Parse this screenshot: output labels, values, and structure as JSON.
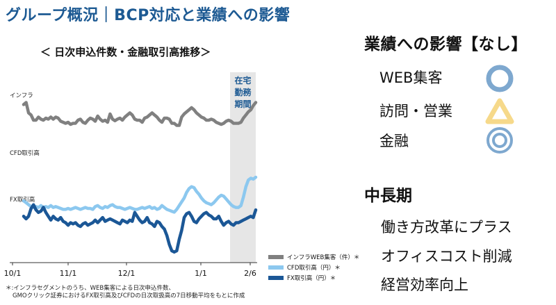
{
  "header": {
    "title": "グループ概況｜BCP対応と業績への影響",
    "chart_heading": "＜ 日次申込件数・金融取引高推移＞"
  },
  "chart_data": {
    "type": "line",
    "x_labels": [
      "10/1",
      "11/1",
      "12/1",
      "1/1",
      "2/6"
    ],
    "shaded_period_label": [
      "在宅",
      "勤務",
      "期間"
    ],
    "series": [
      {
        "name": "インフラWEB集客（件）＊",
        "axis_label": "インフラ",
        "color": "#808080",
        "values": [
          0.86,
          0.9,
          0.7,
          0.66,
          0.56,
          0.56,
          0.62,
          0.58,
          0.56,
          0.6,
          0.58,
          0.62,
          0.58,
          0.62,
          0.6,
          0.54,
          0.52,
          0.5,
          0.52,
          0.48,
          0.5,
          0.5,
          0.56,
          0.58,
          0.52,
          0.5,
          0.56,
          0.6,
          0.58,
          0.54,
          0.64,
          0.58,
          0.54,
          0.56,
          0.52,
          0.68,
          0.58,
          0.55,
          0.58,
          0.6,
          0.56,
          0.62,
          0.66,
          0.7,
          0.66,
          0.58,
          0.56,
          0.56,
          0.52,
          0.6,
          0.62,
          0.66,
          0.7,
          0.66,
          0.62,
          0.56,
          0.52,
          0.6,
          0.6,
          0.58,
          0.5,
          0.5,
          0.46,
          0.46,
          0.62,
          0.68,
          0.72,
          0.76,
          0.8,
          0.76,
          0.7,
          0.66,
          0.62,
          0.6,
          0.56,
          0.56,
          0.58,
          0.56,
          0.52,
          0.5,
          0.48,
          0.5,
          0.54,
          0.56,
          0.54,
          0.5,
          0.5,
          0.5,
          0.52,
          0.6,
          0.66,
          0.72,
          0.76,
          0.84,
          0.9
        ]
      },
      {
        "name": "CFD取引高（円）＊",
        "axis_label": "CFD取引高",
        "color": "#8cc8ef",
        "values": [
          0.16,
          0.12,
          0.08,
          0.04,
          0.02,
          0.04,
          0.02,
          0.06,
          0.02,
          0.04,
          0.02,
          0.06,
          0.02,
          0.04,
          0.02,
          0.0,
          -0.02,
          -0.02,
          0.0,
          -0.02,
          0.0,
          0.02,
          0.0,
          -0.02,
          0.0,
          0.02,
          0.0,
          0.0,
          -0.02,
          0.04,
          0.06,
          0.02,
          0.0,
          0.04,
          0.02,
          0.06,
          0.08,
          0.04,
          0.02,
          0.02,
          0.0,
          -0.02,
          0.0,
          0.02,
          0.0,
          -0.02,
          -0.02,
          0.0,
          0.02,
          0.0,
          0.02,
          0.04,
          0.0,
          0.02,
          -0.02,
          0.0,
          0.06,
          0.02,
          -0.02,
          -0.04,
          -0.06,
          -0.08,
          -0.02,
          0.06,
          0.14,
          0.22,
          0.34,
          0.42,
          0.46,
          0.44,
          0.36,
          0.3,
          0.22,
          0.16,
          0.12,
          0.1,
          0.08,
          0.12,
          0.18,
          0.24,
          0.28,
          0.26,
          0.2,
          0.14,
          0.08,
          0.04,
          0.02,
          0.02,
          0.06,
          0.24,
          0.46,
          0.6,
          0.64,
          0.62,
          0.66
        ]
      },
      {
        "name": "FX取引高（円）＊",
        "axis_label": "FX取引高",
        "color": "#1b5796",
        "values": [
          0.66,
          0.62,
          0.66,
          0.78,
          0.84,
          0.76,
          0.72,
          0.74,
          0.8,
          0.72,
          0.66,
          0.6,
          0.66,
          0.62,
          0.6,
          0.64,
          0.58,
          0.56,
          0.52,
          0.56,
          0.54,
          0.56,
          0.52,
          0.5,
          0.54,
          0.56,
          0.52,
          0.54,
          0.56,
          0.6,
          0.56,
          0.6,
          0.64,
          0.58,
          0.6,
          0.62,
          0.6,
          0.58,
          0.56,
          0.54,
          0.6,
          0.58,
          0.56,
          0.6,
          0.58,
          0.72,
          0.66,
          0.6,
          0.56,
          0.58,
          0.64,
          0.56,
          0.54,
          0.5,
          0.58,
          0.56,
          0.5,
          0.46,
          0.36,
          0.22,
          0.12,
          0.1,
          0.12,
          0.3,
          0.44,
          0.64,
          0.7,
          0.72,
          0.66,
          0.58,
          0.56,
          0.62,
          0.66,
          0.7,
          0.72,
          0.68,
          0.66,
          0.62,
          0.62,
          0.66,
          0.58,
          0.52,
          0.56,
          0.58,
          0.54,
          0.52,
          0.56,
          0.56,
          0.58,
          0.6,
          0.62,
          0.64,
          0.66,
          0.64,
          0.76
        ]
      }
    ],
    "legend_placement": "bottom-right"
  },
  "footnote": {
    "line1": "＊:インフラセグメントのうち、WEB集客による日次申込件数、",
    "line2": "GMOクリック証券におけるFX取引高及びCFDの日次取扱高の7日移動平均をもとに作成"
  },
  "impact": {
    "title": "業績への影響【なし】",
    "items": [
      {
        "label": "WEB集客",
        "mark": "circle-icon",
        "color": "#7ea8cf"
      },
      {
        "label": "訪問・営業",
        "mark": "triangle-icon",
        "color": "#f6d98a"
      },
      {
        "label": "金融",
        "mark": "double-circle-icon",
        "color": "#7ea8cf"
      }
    ]
  },
  "mid_term": {
    "title": "中長期",
    "items": [
      "働き方改革にプラス",
      "オフィスコスト削減",
      "経営効率向上"
    ]
  }
}
